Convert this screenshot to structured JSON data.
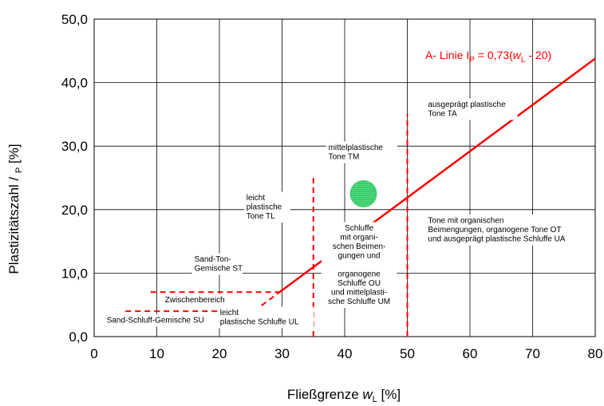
{
  "chart_data": {
    "type": "line",
    "xlabel_main": "Fließgrenze ",
    "xlabel_var": "w",
    "xlabel_sub": "L",
    "xlabel_unit": " [%]",
    "ylabel_main": "Plastizitätszahl / ",
    "ylabel_sub": "P",
    "ylabel_unit": " [%]",
    "xlim": [
      0,
      80
    ],
    "ylim": [
      0,
      50
    ],
    "grid": true,
    "x_ticks": [
      0,
      10,
      20,
      30,
      40,
      50,
      60,
      70,
      80
    ],
    "x_tick_labels": [
      "0",
      "10",
      "20",
      "30",
      "40",
      "50",
      "60",
      "70",
      "80"
    ],
    "y_ticks": [
      0,
      10,
      20,
      30,
      40,
      50
    ],
    "y_tick_labels": [
      "0,0",
      "10,0",
      "20,0",
      "30,0",
      "40,0",
      "50,0"
    ],
    "a_line": {
      "label_prefix": "A- Linie I",
      "label_sub": "P",
      "label_mid": " = 0,73(",
      "label_var": "w",
      "label_var_sub": "L",
      "label_suffix": " - 20)",
      "color": "#ff0000",
      "points": [
        [
          29.6,
          7
        ],
        [
          80,
          43.8
        ]
      ],
      "dashed_extension": [
        [
          25.5,
          4
        ],
        [
          29.6,
          7
        ]
      ]
    },
    "boundaries": [
      {
        "name": "boundary-wl-35",
        "points": [
          [
            35,
            0
          ],
          [
            35,
            25
          ]
        ]
      },
      {
        "name": "boundary-wl-50",
        "points": [
          [
            50,
            0
          ],
          [
            50,
            35
          ]
        ]
      },
      {
        "name": "boundary-ip-7",
        "points": [
          [
            9,
            7
          ],
          [
            29.6,
            7
          ]
        ]
      },
      {
        "name": "boundary-ip-4",
        "points": [
          [
            5,
            4
          ],
          [
            25.5,
            4
          ]
        ]
      }
    ],
    "boundary_color": "#ff0000",
    "sample_point": {
      "x": 43,
      "y": 22.5,
      "color": "#33cc66"
    },
    "regions": [
      {
        "name": "region-ta",
        "lines": [
          "ausgeprägt plastische",
          "Tone TA"
        ],
        "x": 53.3,
        "y": 36.2
      },
      {
        "name": "region-tm",
        "lines": [
          "mittelplastische",
          "Tone TM"
        ],
        "x": 37.4,
        "y": 29.4
      },
      {
        "name": "region-tl",
        "lines": [
          "leicht",
          "plastische",
          "Tone TL"
        ],
        "x": 24.3,
        "y": 21.5
      },
      {
        "name": "region-st",
        "lines": [
          "Sand-Ton-",
          "Gemische ST"
        ],
        "x": 16,
        "y": 11.8
      },
      {
        "name": "region-zwischen",
        "lines": [
          "Zwischenbereich"
        ],
        "x": 11.3,
        "y": 5.4
      },
      {
        "name": "region-su",
        "lines": [
          "Sand-Schluff-Gemische SU"
        ],
        "x": 2,
        "y": 2.2
      },
      {
        "name": "region-ul",
        "lines": [
          "leicht",
          "plastische Schluffe UL"
        ],
        "x": 20.1,
        "y": 3.4
      },
      {
        "name": "region-um",
        "lines": [
          "Schluffe",
          "mit organi-",
          "schen Beimen-",
          "gungen und",
          " ",
          "organogene",
          "Schluffe OU",
          "und mittelplasti-",
          "sche Schluffe UM"
        ],
        "x": 42.3,
        "y": 16.7,
        "centered": true
      },
      {
        "name": "region-ot",
        "lines": [
          "Tone mit organischen",
          "Beimengungen, organogene Tone OT",
          "und ausgeprägt plastische Schluffe UA"
        ],
        "x": 53.3,
        "y": 17.9
      }
    ]
  }
}
